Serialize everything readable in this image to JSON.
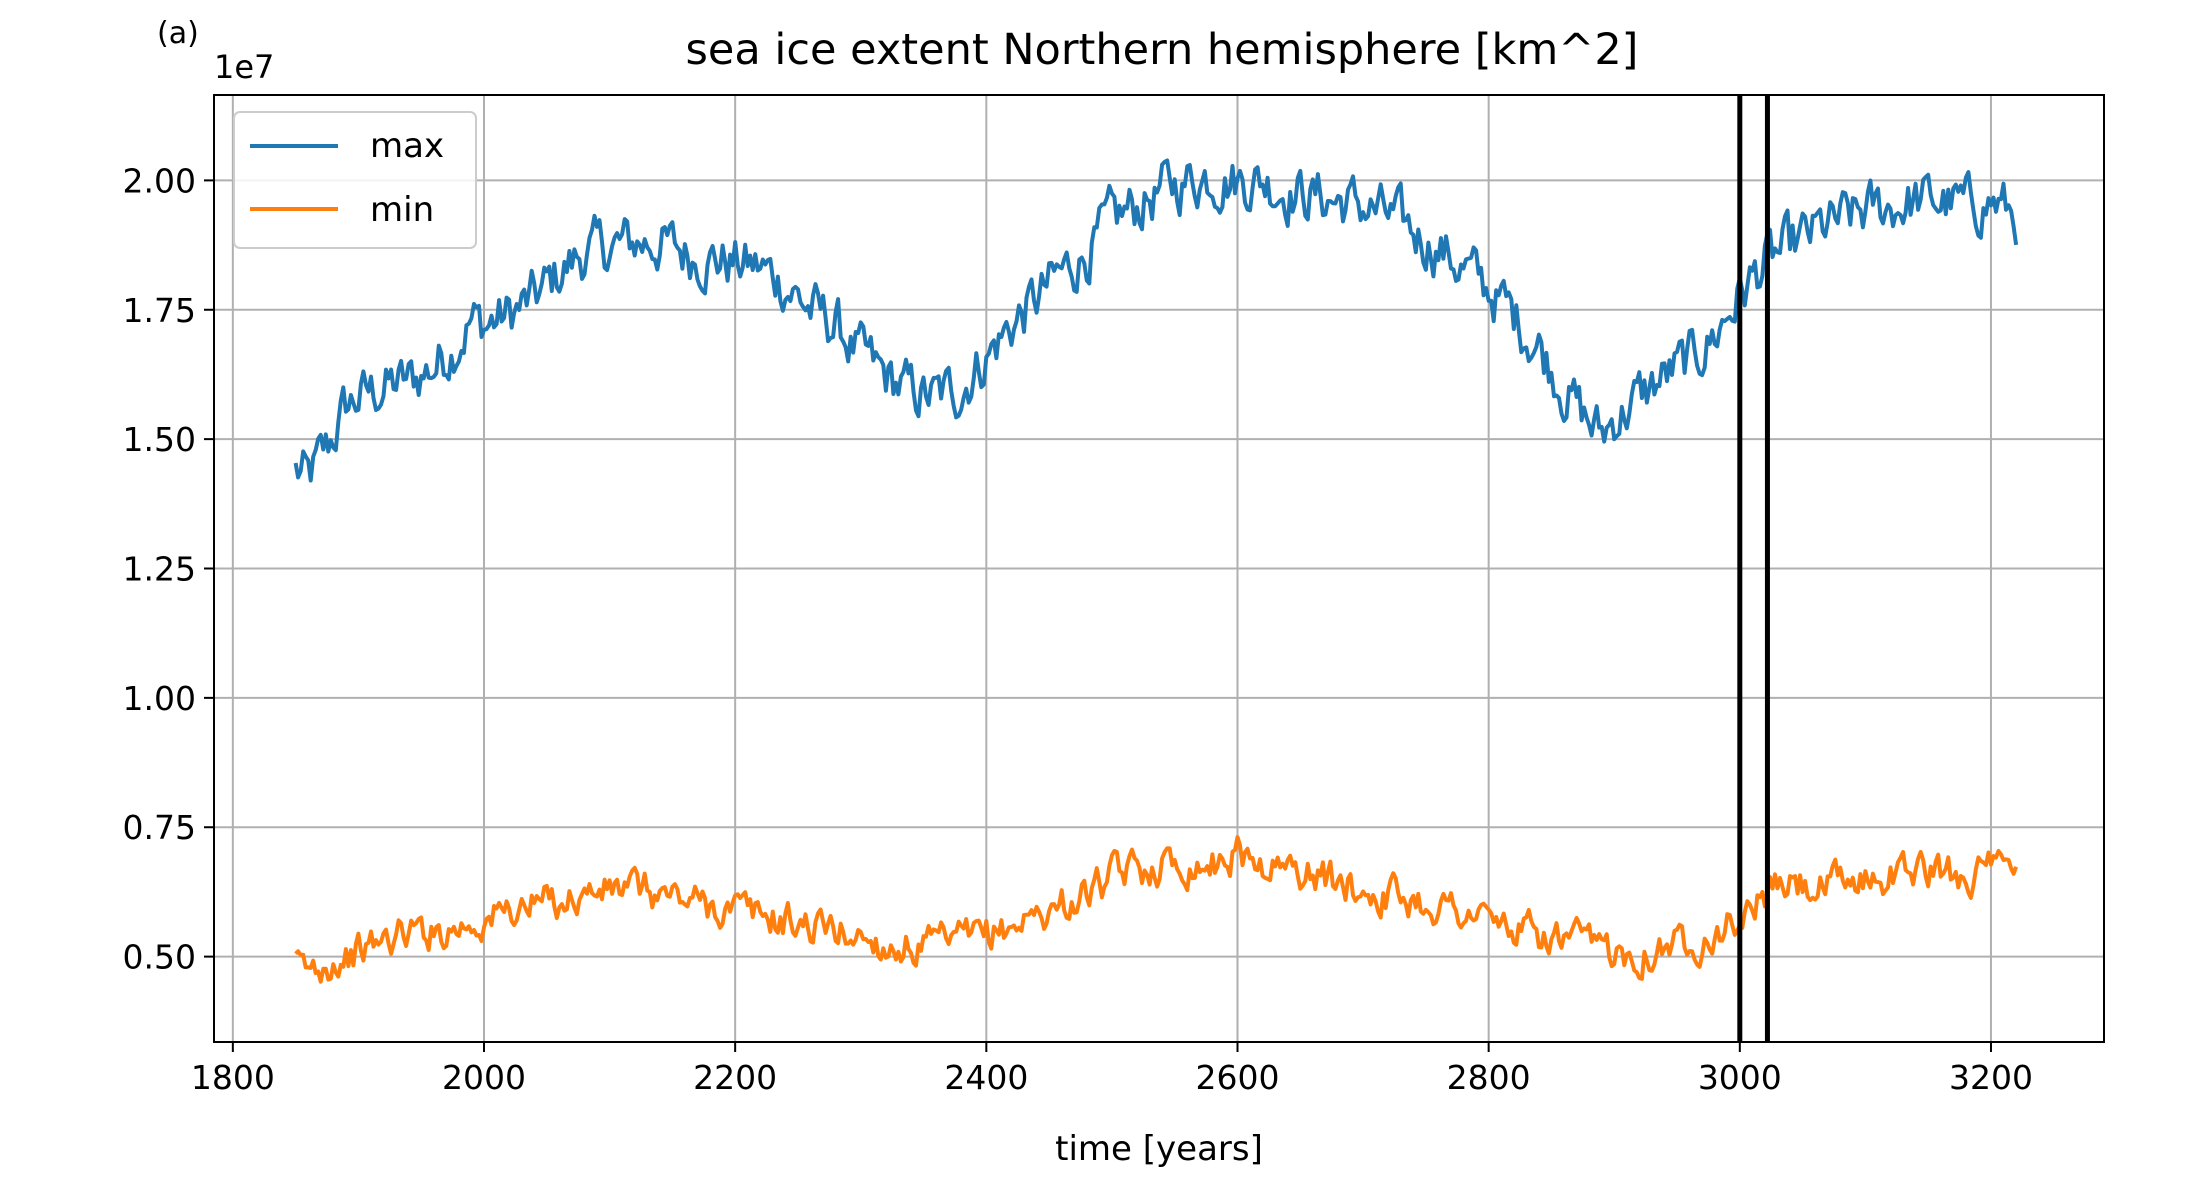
{
  "panel_label": "(a)",
  "chart_data": {
    "type": "line",
    "title": "sea ice extent Northern hemisphere [km^2]",
    "xlabel": "time [years]",
    "ylabel": "",
    "y_offset_label": "1e7",
    "xlim": [
      1785,
      3290
    ],
    "ylim": [
      0.335,
      2.165
    ],
    "y_scale_note": "values in units of 1e7 km^2",
    "xticks": [
      1800,
      2000,
      2200,
      2400,
      2600,
      2800,
      3000,
      3200
    ],
    "xtick_labels": [
      "1800",
      "2000",
      "2200",
      "2400",
      "2600",
      "2800",
      "3000",
      "3200"
    ],
    "yticks": [
      0.5,
      0.75,
      1.0,
      1.25,
      1.5,
      1.75,
      2.0
    ],
    "ytick_labels": [
      "0.50",
      "0.75",
      "1.00",
      "1.25",
      "1.50",
      "1.75",
      "2.00"
    ],
    "grid": true,
    "legend": "top-left",
    "vertical_lines": [
      3000,
      3022
    ],
    "colors": {
      "max": "#1f77b4",
      "min": "#ff7f0e",
      "vline": "#000000",
      "grid": "#b0b0b0"
    },
    "series": [
      {
        "name": "max",
        "color": "#1f77b4",
        "x": [
          1850,
          1860,
          1875,
          1890,
          1900,
          1920,
          1940,
          1960,
          1975,
          1990,
          2000,
          2020,
          2040,
          2060,
          2080,
          2100,
          2120,
          2140,
          2160,
          2180,
          2200,
          2220,
          2240,
          2260,
          2280,
          2300,
          2320,
          2340,
          2360,
          2380,
          2400,
          2420,
          2440,
          2460,
          2480,
          2500,
          2520,
          2540,
          2560,
          2580,
          2600,
          2620,
          2640,
          2660,
          2680,
          2700,
          2720,
          2740,
          2760,
          2780,
          2800,
          2820,
          2840,
          2860,
          2880,
          2890,
          2900,
          2920,
          2940,
          2960,
          2980,
          3000,
          3020,
          3040,
          3060,
          3080,
          3100,
          3120,
          3140,
          3160,
          3180,
          3200,
          3220
        ],
        "values": [
          1.44,
          1.42,
          1.48,
          1.56,
          1.58,
          1.6,
          1.61,
          1.64,
          1.68,
          1.73,
          1.72,
          1.74,
          1.77,
          1.82,
          1.86,
          1.87,
          1.88,
          1.88,
          1.86,
          1.85,
          1.84,
          1.83,
          1.8,
          1.75,
          1.72,
          1.66,
          1.62,
          1.59,
          1.58,
          1.6,
          1.66,
          1.72,
          1.77,
          1.82,
          1.86,
          1.92,
          1.95,
          1.98,
          2.0,
          2.01,
          2.0,
          2.0,
          1.98,
          1.97,
          1.96,
          1.95,
          1.93,
          1.9,
          1.87,
          1.83,
          1.79,
          1.74,
          1.68,
          1.6,
          1.53,
          1.51,
          1.54,
          1.58,
          1.62,
          1.65,
          1.7,
          1.78,
          1.84,
          1.87,
          1.9,
          1.92,
          1.94,
          1.95,
          1.96,
          1.96,
          1.95,
          1.96,
          1.93
        ]
      },
      {
        "name": "min",
        "color": "#ff7f0e",
        "x": [
          1850,
          1860,
          1875,
          1890,
          1900,
          1920,
          1940,
          1960,
          1980,
          2000,
          2020,
          2040,
          2060,
          2080,
          2100,
          2120,
          2140,
          2160,
          2180,
          2200,
          2220,
          2240,
          2260,
          2280,
          2300,
          2320,
          2340,
          2360,
          2380,
          2400,
          2420,
          2440,
          2460,
          2480,
          2500,
          2520,
          2540,
          2560,
          2580,
          2600,
          2620,
          2640,
          2660,
          2680,
          2700,
          2720,
          2740,
          2760,
          2780,
          2800,
          2820,
          2840,
          2860,
          2880,
          2900,
          2920,
          2940,
          2960,
          2980,
          3000,
          3020,
          3040,
          3060,
          3080,
          3100,
          3120,
          3140,
          3160,
          3180,
          3200,
          3220
        ],
        "values": [
          0.48,
          0.47,
          0.49,
          0.5,
          0.51,
          0.53,
          0.55,
          0.55,
          0.56,
          0.57,
          0.59,
          0.6,
          0.61,
          0.62,
          0.63,
          0.63,
          0.62,
          0.61,
          0.6,
          0.59,
          0.58,
          0.57,
          0.56,
          0.55,
          0.54,
          0.52,
          0.52,
          0.52,
          0.53,
          0.54,
          0.56,
          0.58,
          0.6,
          0.62,
          0.65,
          0.67,
          0.68,
          0.68,
          0.68,
          0.7,
          0.68,
          0.67,
          0.66,
          0.64,
          0.63,
          0.62,
          0.61,
          0.6,
          0.59,
          0.57,
          0.55,
          0.54,
          0.53,
          0.52,
          0.51,
          0.51,
          0.52,
          0.53,
          0.55,
          0.57,
          0.62,
          0.64,
          0.63,
          0.64,
          0.65,
          0.66,
          0.67,
          0.66,
          0.66,
          0.67,
          0.65
        ]
      }
    ]
  }
}
